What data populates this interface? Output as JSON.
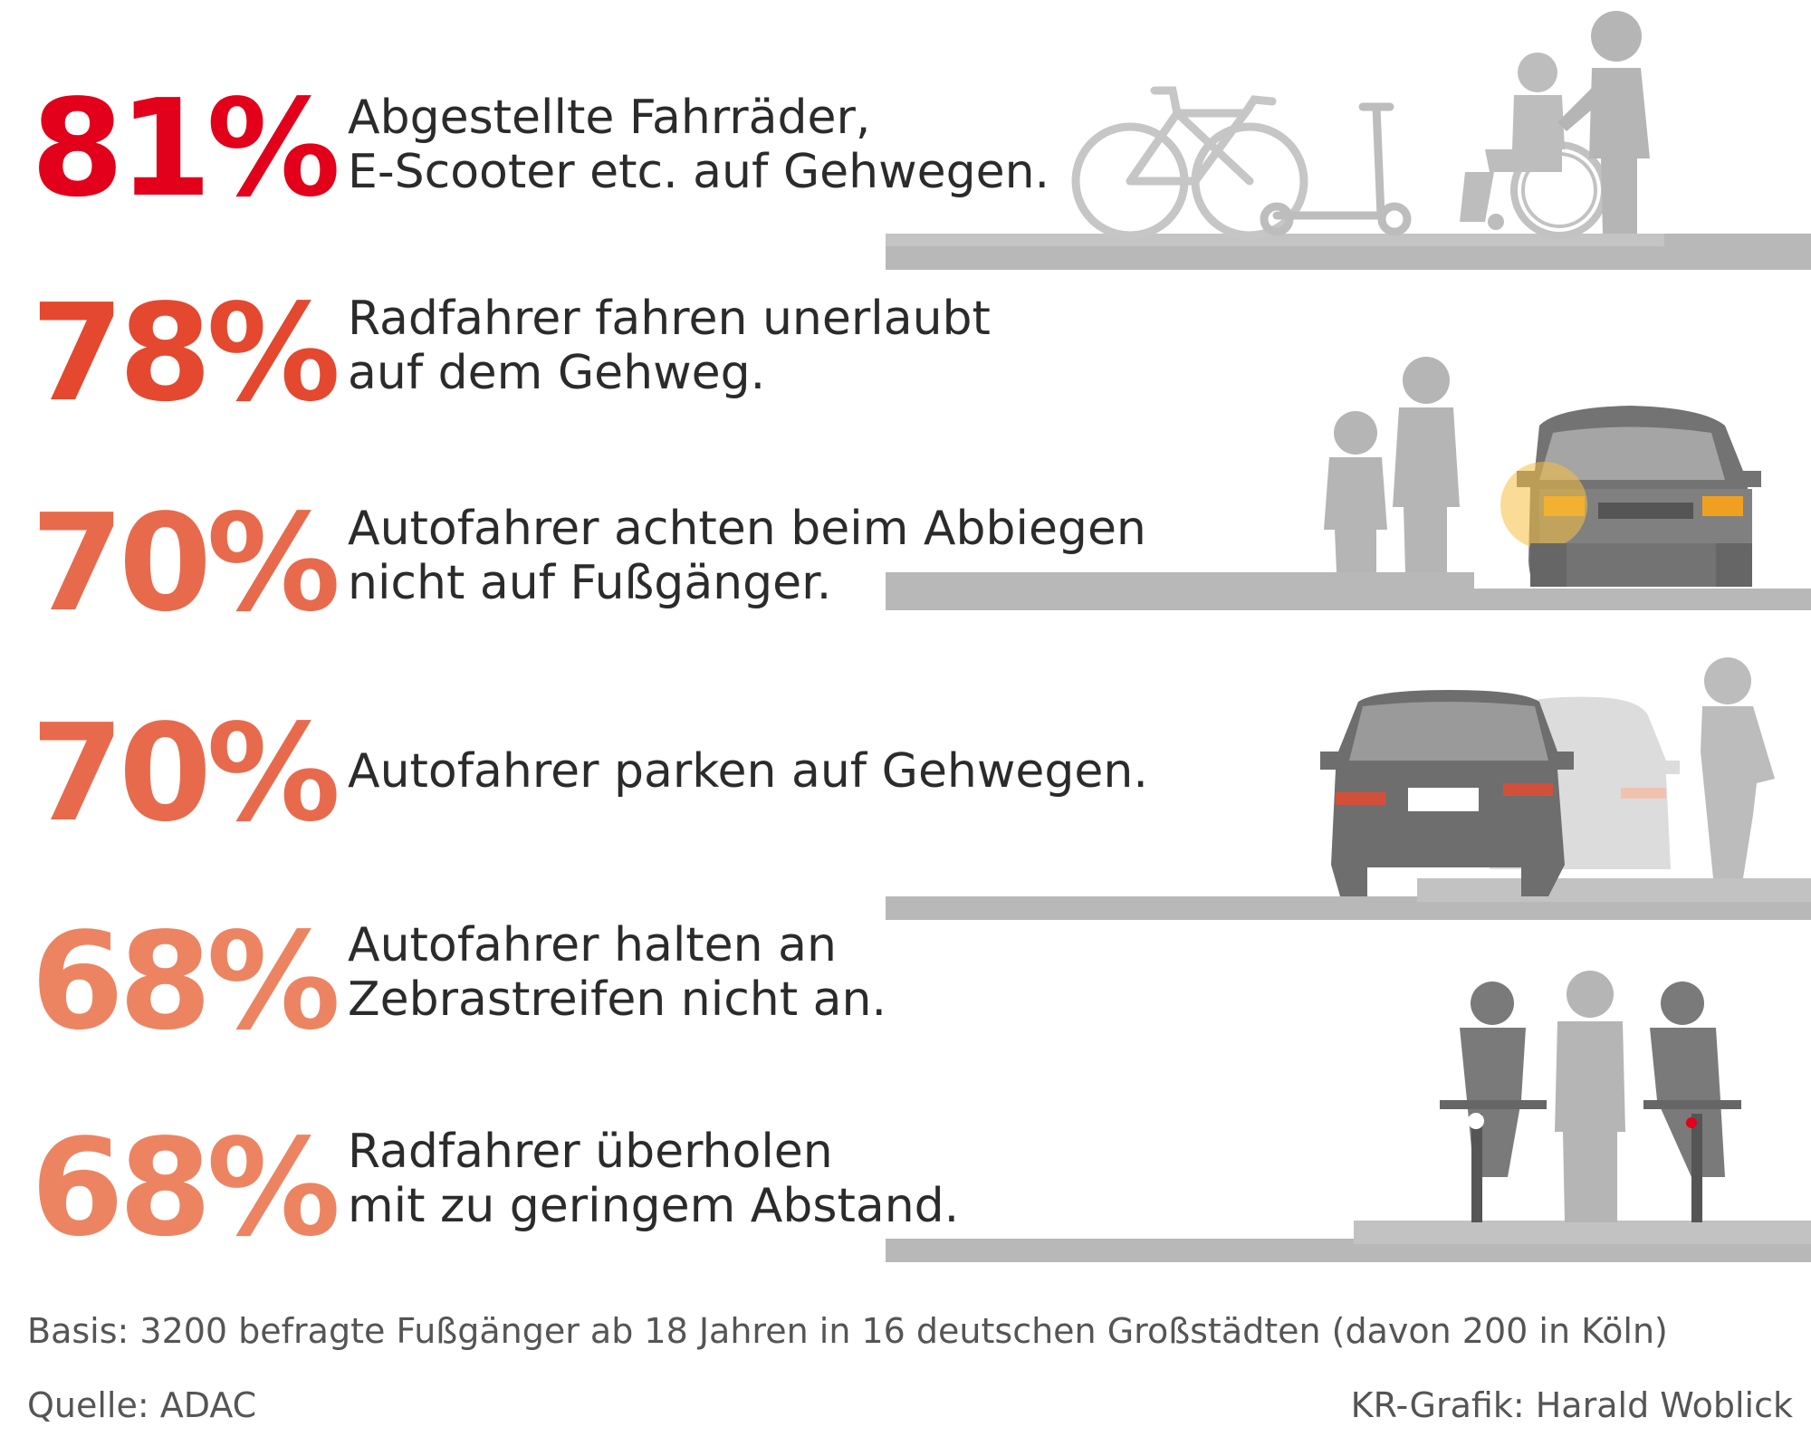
{
  "chart_data": {
    "type": "bar",
    "unit": "%",
    "items": [
      {
        "value_label": "81%",
        "value": 81,
        "label": "Abgestellte Fahrräder,\nE-Scooter etc. auf Gehwegen.",
        "color": "#e2001a"
      },
      {
        "value_label": "78%",
        "value": 78,
        "label": "Radfahrer fahren unerlaubt\nauf dem Gehweg.",
        "color": "#e4482e"
      },
      {
        "value_label": "70%",
        "value": 70,
        "label": "Autofahrer achten beim Abbiegen\nnicht auf Fußgänger.",
        "color": "#e86a4c"
      },
      {
        "value_label": "70%",
        "value": 70,
        "label": "Autofahrer parken auf Gehwegen.",
        "color": "#e86a4c"
      },
      {
        "value_label": "68%",
        "value": 68,
        "label": "Autofahrer halten an\nZebrastreifen nicht an.",
        "color": "#ec8462"
      },
      {
        "value_label": "68%",
        "value": 68,
        "label": "Radfahrer überholen\nmit zu geringem Abstand.",
        "color": "#ec8462"
      }
    ]
  },
  "footer": {
    "basis": "Basis: 3200 befragte Fußgänger ab 18 Jahren in 16 deutschen Großstädten (davon 200 in Köln)",
    "source": "Quelle: ADAC",
    "credit": "KR-Grafik: Harald Woblick"
  },
  "icons": [
    "bicycle-icon",
    "e-scooter-icon",
    "wheelchair-icon",
    "pedestrian-icon",
    "car-front-icon",
    "car-rear-icon",
    "cyclist-icon"
  ]
}
